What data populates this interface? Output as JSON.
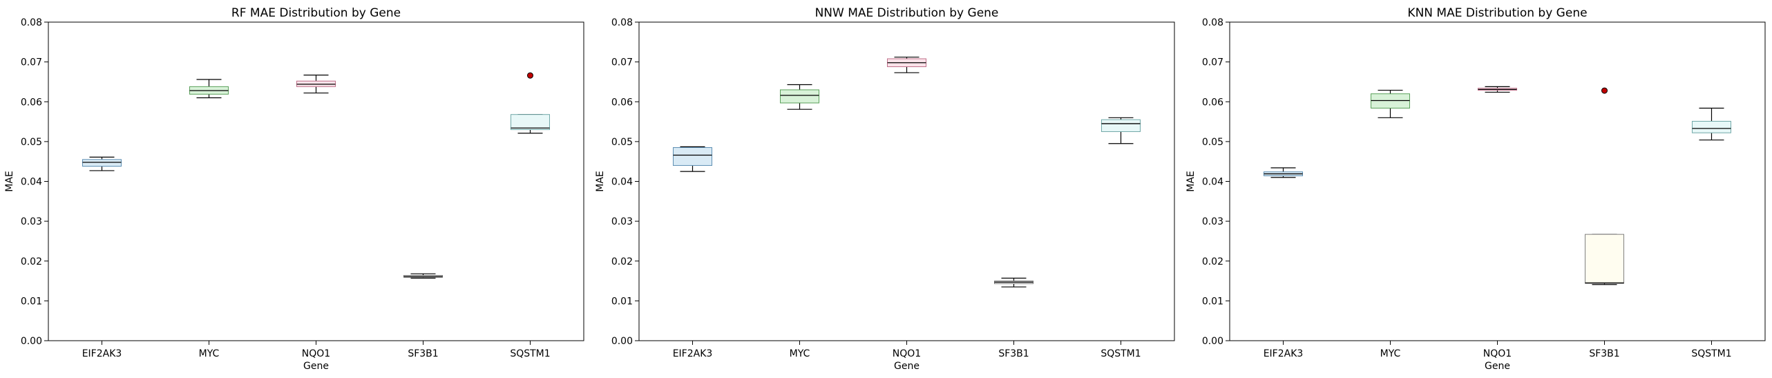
{
  "chart_data": [
    {
      "type": "box",
      "title": "RF MAE Distribution by Gene",
      "xlabel": "Gene",
      "ylabel": "MAE",
      "ylim": [
        0,
        0.08
      ],
      "yticks": [
        "0.00",
        "0.01",
        "0.02",
        "0.03",
        "0.04",
        "0.05",
        "0.06",
        "0.07",
        "0.08"
      ],
      "categories": [
        "EIF2AK3",
        "MYC",
        "NQO1",
        "SF3B1",
        "SQSTM1"
      ],
      "boxes": [
        {
          "whisker_low": 0.0427,
          "q1": 0.0438,
          "median": 0.0448,
          "q3": 0.0455,
          "whisker_high": 0.0461,
          "outliers": []
        },
        {
          "whisker_low": 0.061,
          "q1": 0.0619,
          "median": 0.0628,
          "q3": 0.0638,
          "whisker_high": 0.0656,
          "outliers": []
        },
        {
          "whisker_low": 0.0622,
          "q1": 0.0638,
          "median": 0.0644,
          "q3": 0.0652,
          "whisker_high": 0.0667,
          "outliers": []
        },
        {
          "whisker_low": 0.0157,
          "q1": 0.0159,
          "median": 0.0161,
          "q3": 0.0164,
          "whisker_high": 0.0168,
          "outliers": []
        },
        {
          "whisker_low": 0.0521,
          "q1": 0.053,
          "median": 0.0534,
          "q3": 0.0568,
          "whisker_high": 0.0568,
          "outliers": [
            0.0666
          ]
        }
      ]
    },
    {
      "type": "box",
      "title": "NNW MAE Distribution by Gene",
      "xlabel": "Gene",
      "ylabel": "MAE",
      "ylim": [
        0,
        0.08
      ],
      "yticks": [
        "0.00",
        "0.01",
        "0.02",
        "0.03",
        "0.04",
        "0.05",
        "0.06",
        "0.07",
        "0.08"
      ],
      "categories": [
        "EIF2AK3",
        "MYC",
        "NQO1",
        "SF3B1",
        "SQSTM1"
      ],
      "boxes": [
        {
          "whisker_low": 0.0425,
          "q1": 0.044,
          "median": 0.0466,
          "q3": 0.0485,
          "whisker_high": 0.0487,
          "outliers": []
        },
        {
          "whisker_low": 0.0581,
          "q1": 0.0597,
          "median": 0.0616,
          "q3": 0.063,
          "whisker_high": 0.0643,
          "outliers": []
        },
        {
          "whisker_low": 0.0673,
          "q1": 0.0688,
          "median": 0.0698,
          "q3": 0.0708,
          "whisker_high": 0.0712,
          "outliers": []
        },
        {
          "whisker_low": 0.0135,
          "q1": 0.0143,
          "median": 0.0147,
          "q3": 0.015,
          "whisker_high": 0.0157,
          "outliers": []
        },
        {
          "whisker_low": 0.0495,
          "q1": 0.0525,
          "median": 0.0545,
          "q3": 0.0555,
          "whisker_high": 0.056,
          "outliers": []
        }
      ]
    },
    {
      "type": "box",
      "title": "KNN MAE Distribution by Gene",
      "xlabel": "Gene",
      "ylabel": "MAE",
      "ylim": [
        0,
        0.08
      ],
      "yticks": [
        "0.00",
        "0.01",
        "0.02",
        "0.03",
        "0.04",
        "0.05",
        "0.06",
        "0.07",
        "0.08"
      ],
      "categories": [
        "EIF2AK3",
        "MYC",
        "NQO1",
        "SF3B1",
        "SQSTM1"
      ],
      "boxes": [
        {
          "whisker_low": 0.041,
          "q1": 0.0414,
          "median": 0.0419,
          "q3": 0.0424,
          "whisker_high": 0.0434,
          "outliers": []
        },
        {
          "whisker_low": 0.056,
          "q1": 0.0584,
          "median": 0.0603,
          "q3": 0.062,
          "whisker_high": 0.0629,
          "outliers": []
        },
        {
          "whisker_low": 0.0624,
          "q1": 0.0629,
          "median": 0.0631,
          "q3": 0.0634,
          "whisker_high": 0.0638,
          "outliers": []
        },
        {
          "whisker_low": 0.0141,
          "q1": 0.0144,
          "median": 0.0145,
          "q3": 0.0267,
          "whisker_high": 0.0267,
          "outliers": [
            0.0628
          ]
        },
        {
          "whisker_low": 0.0504,
          "q1": 0.0522,
          "median": 0.0533,
          "q3": 0.0551,
          "whisker_high": 0.0584,
          "outliers": []
        }
      ]
    }
  ],
  "colors": {
    "box_fills": [
      "#d9eaf5",
      "#d8f2d8",
      "#fbe3ea",
      "#f0f0f0",
      "#e8f8f8"
    ],
    "box_edges": [
      "#5e8fb3",
      "#5aa05a",
      "#c0708a",
      "#808080",
      "#70a8a8"
    ],
    "knn_sf3b1_fill": "#fffdf0",
    "median": "#000000",
    "outlier_fill": "#c00000",
    "outlier_edge": "#000000"
  }
}
